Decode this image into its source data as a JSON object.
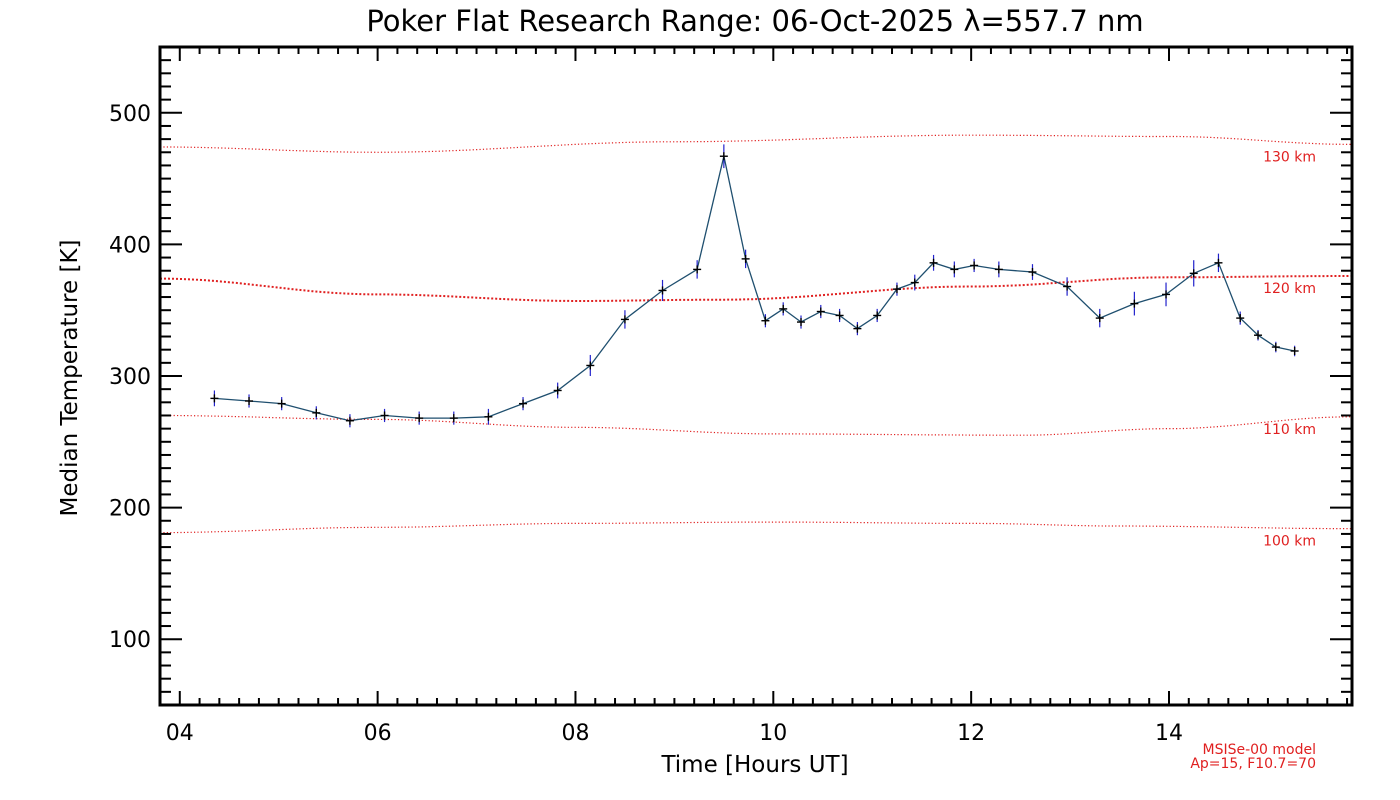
{
  "chart_data": {
    "type": "line",
    "title": "Poker Flat Research Range: 06-Oct-2025 λ=557.7 nm",
    "xlabel": "Time [Hours UT]",
    "ylabel": "Median Temperature [K]",
    "xlim": [
      3.8,
      15.85
    ],
    "ylim": [
      50,
      550
    ],
    "x_ticks": [
      4,
      6,
      8,
      10,
      12,
      14
    ],
    "x_tick_labels": [
      "04",
      "06",
      "08",
      "10",
      "12",
      "14"
    ],
    "y_ticks": [
      100,
      200,
      300,
      400,
      500
    ],
    "y_tick_labels": [
      "100",
      "200",
      "300",
      "400",
      "500"
    ],
    "grid": false,
    "series": [
      {
        "name": "Median Temperature",
        "color": "#000000",
        "line_color": "#1f4f6f",
        "error_color": "#2222cc",
        "x": [
          4.35,
          4.7,
          5.03,
          5.38,
          5.72,
          6.07,
          6.42,
          6.77,
          7.12,
          7.47,
          7.82,
          8.15,
          8.5,
          8.88,
          9.23,
          9.5,
          9.72,
          9.92,
          10.1,
          10.28,
          10.48,
          10.67,
          10.85,
          11.05,
          11.25,
          11.43,
          11.62,
          11.83,
          12.03,
          12.28,
          12.62,
          12.97,
          13.3,
          13.65,
          13.97,
          14.25,
          14.5,
          14.72,
          14.9,
          15.08,
          15.27
        ],
        "y": [
          283,
          281,
          279,
          272,
          266,
          270,
          268,
          268,
          269,
          279,
          289,
          308,
          343,
          365,
          381,
          467,
          389,
          342,
          351,
          341,
          349,
          346,
          336,
          346,
          366,
          371,
          386,
          381,
          384,
          381,
          379,
          368,
          344,
          355,
          362,
          378,
          386,
          344,
          331,
          322,
          319
        ],
        "yerr": [
          6,
          5,
          5,
          5,
          5,
          5,
          5,
          5,
          6,
          5,
          6,
          8,
          7,
          8,
          7,
          9,
          7,
          5,
          5,
          5,
          5,
          5,
          5,
          5,
          5,
          6,
          6,
          6,
          5,
          6,
          6,
          7,
          7,
          9,
          9,
          10,
          7,
          5,
          4,
          4,
          4
        ]
      }
    ],
    "model_curves": [
      {
        "label": "130 km",
        "color": "#e02020",
        "x": [
          3.8,
          6,
          9,
          12,
          14,
          15.85
        ],
        "y": [
          474,
          470,
          478,
          483,
          482,
          476
        ]
      },
      {
        "label": "120 km",
        "color": "#e02020",
        "x": [
          3.8,
          6,
          8,
          9.5,
          12,
          14,
          15.85
        ],
        "y": [
          374,
          362,
          357,
          358,
          368,
          375,
          376
        ]
      },
      {
        "label": "110 km",
        "color": "#e02020",
        "x": [
          3.8,
          6,
          8,
          10,
          12.5,
          14,
          15.85
        ],
        "y": [
          270,
          267,
          261,
          256,
          255,
          260,
          269
        ]
      },
      {
        "label": "100 km",
        "color": "#e02020",
        "x": [
          3.8,
          6,
          8,
          10,
          12,
          13.5,
          15.85
        ],
        "y": [
          181,
          185,
          188,
          189,
          188,
          186,
          184
        ]
      }
    ],
    "annotations": [
      "MSISe-00 model",
      "Ap=15, F10.7=70"
    ],
    "annotation_color": "#e02020"
  }
}
